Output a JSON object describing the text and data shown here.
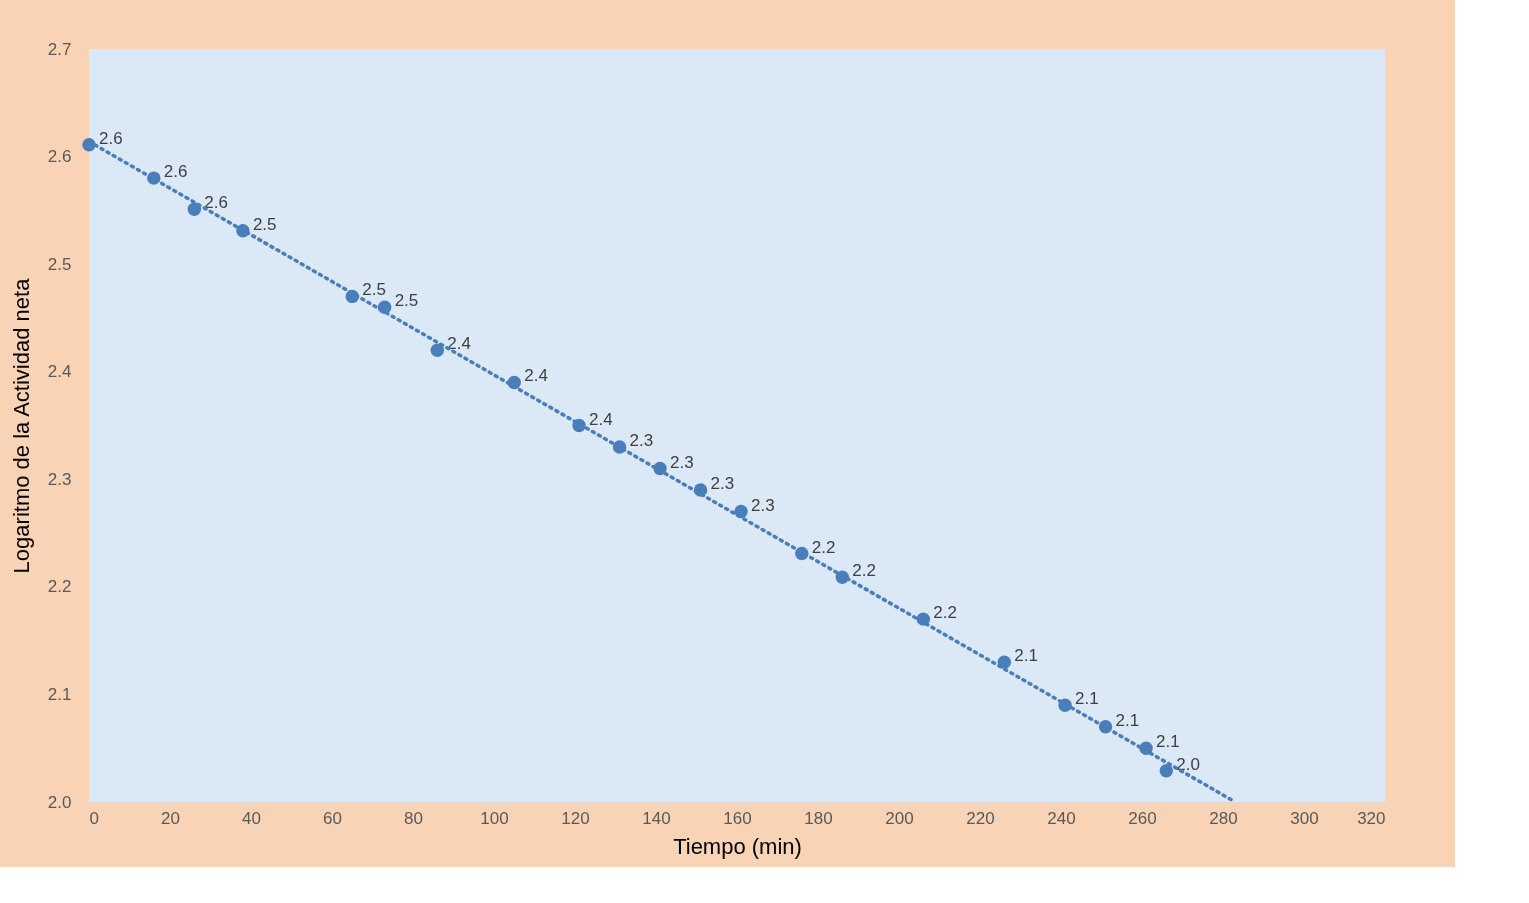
{
  "chart_data": {
    "type": "scatter",
    "xlabel": "Tiempo (min)",
    "ylabel": "Logaritmo de la Actividad neta",
    "xlim": [
      0,
      320
    ],
    "xticks": [
      0,
      20,
      40,
      60,
      80,
      100,
      120,
      140,
      160,
      180,
      200,
      220,
      240,
      260,
      280,
      300,
      320
    ],
    "ylim": [
      2.0,
      2.7
    ],
    "yticks": [
      {
        "value": 2.0,
        "label": "2.0"
      },
      2.1,
      2.2,
      2.3,
      2.4,
      2.5,
      2.6,
      2.7
    ],
    "grid": false,
    "marker": "circle",
    "series": [
      {
        "color": "#4a7ebb",
        "x": [
          0,
          16,
          26,
          38,
          65,
          73,
          86,
          105,
          121,
          131,
          141,
          151,
          161,
          176,
          186,
          206,
          226,
          241,
          251,
          261,
          266
        ],
        "values": [
          2.611,
          2.58,
          2.551,
          2.531,
          2.47,
          2.46,
          2.42,
          2.39,
          2.35,
          2.33,
          2.31,
          2.29,
          2.27,
          2.231,
          2.209,
          2.17,
          2.13,
          2.09,
          2.07,
          2.05,
          2.029
        ],
        "value_labels": [
          "2.6",
          "2.6",
          "2.6",
          "2.5",
          "2.5",
          "2.5",
          "2.4",
          "2.4",
          "2.4",
          "2.3",
          "2.3",
          "2.3",
          "2.3",
          "2.2",
          "2.2",
          "2.2",
          "2.1",
          "2.1",
          "2.1",
          "2.1",
          "2.0"
        ]
      },
      {
        "type": "line",
        "color": "#4a7ebb",
        "line_style": "dotted",
        "marker": "none",
        "x": [
          0,
          283
        ],
        "values": [
          2.614,
          2.0
        ]
      }
    ]
  }
}
